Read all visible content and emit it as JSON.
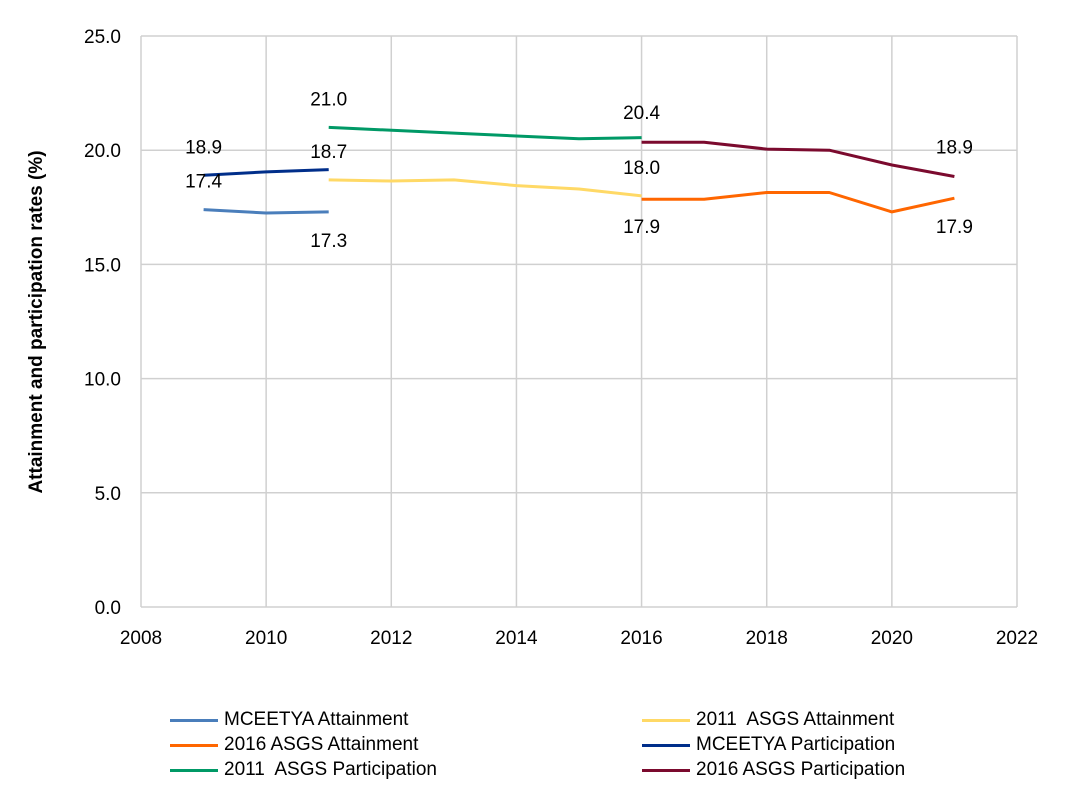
{
  "chart_data": {
    "type": "line",
    "title": "",
    "xlabel": "",
    "ylabel": "Attainment and participation rates  (%)",
    "xlim": [
      2008,
      2022
    ],
    "ylim": [
      0,
      25
    ],
    "x_ticks": [
      2008,
      2010,
      2012,
      2014,
      2016,
      2018,
      2020,
      2022
    ],
    "y_ticks": [
      "0.0",
      "5.0",
      "10.0",
      "15.0",
      "20.0",
      "25.0"
    ],
    "y_tick_values": [
      0,
      5,
      10,
      15,
      20,
      25
    ],
    "grid": true,
    "legend_position": "bottom",
    "series": [
      {
        "name": "MCEETYA Attainment",
        "color": "#4A7EBB",
        "x": [
          2009,
          2010,
          2011
        ],
        "values": [
          17.4,
          17.25,
          17.3
        ]
      },
      {
        "name": "2011  ASGS Attainment",
        "color": "#FFD966",
        "x": [
          2011,
          2012,
          2013,
          2014,
          2015,
          2016
        ],
        "values": [
          18.7,
          18.65,
          18.7,
          18.45,
          18.3,
          18.0
        ]
      },
      {
        "name": "2016 ASGS Attainment",
        "color": "#FF6600",
        "x": [
          2016,
          2017,
          2018,
          2019,
          2020,
          2021
        ],
        "values": [
          17.85,
          17.85,
          18.15,
          18.15,
          17.3,
          17.9
        ]
      },
      {
        "name": "MCEETYA Participation",
        "color": "#002E8A",
        "x": [
          2009,
          2010,
          2011
        ],
        "values": [
          18.9,
          19.05,
          19.15
        ]
      },
      {
        "name": "2011  ASGS Participation",
        "color": "#009966",
        "x": [
          2011,
          2013,
          2015,
          2016
        ],
        "values": [
          21.0,
          20.75,
          20.5,
          20.55
        ]
      },
      {
        "name": "2016 ASGS Participation",
        "color": "#7B0A2E",
        "x": [
          2016,
          2017,
          2018,
          2019,
          2020,
          2021
        ],
        "values": [
          20.35,
          20.35,
          20.05,
          20.0,
          19.35,
          18.85
        ]
      }
    ],
    "data_labels": [
      {
        "text": "18.9",
        "x": 2009,
        "y": 18.9,
        "place": "above"
      },
      {
        "text": "17.4",
        "x": 2009,
        "y": 17.4,
        "place": "above"
      },
      {
        "text": "17.3",
        "x": 2011,
        "y": 17.3,
        "place": "below"
      },
      {
        "text": "18.7",
        "x": 2011,
        "y": 18.7,
        "place": "above"
      },
      {
        "text": "21.0",
        "x": 2011,
        "y": 21.0,
        "place": "above"
      },
      {
        "text": "20.4",
        "x": 2016,
        "y": 20.4,
        "place": "above"
      },
      {
        "text": "18.0",
        "x": 2016,
        "y": 18.0,
        "place": "above"
      },
      {
        "text": "17.9",
        "x": 2016,
        "y": 17.9,
        "place": "below"
      },
      {
        "text": "18.9",
        "x": 2021,
        "y": 18.9,
        "place": "above"
      },
      {
        "text": "17.9",
        "x": 2021,
        "y": 17.9,
        "place": "below"
      }
    ]
  }
}
